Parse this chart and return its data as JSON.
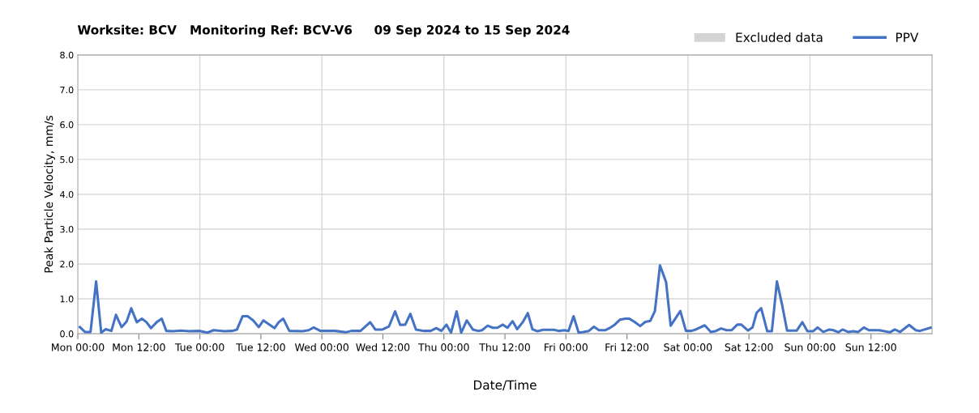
{
  "chart_data": {
    "type": "line",
    "title": "Worksite: BCV   Monitoring Ref: BCV-V6     09 Sep 2024 to 15 Sep 2024",
    "xlabel": "Date/Time",
    "ylabel": "Peak Particle Velocity, mm/s",
    "xlim": [
      "2024-09-09T00:00",
      "2024-09-16T00:00"
    ],
    "xticks": [
      {
        "value": "2024-09-09T00:00",
        "label": "Mon 00:00"
      },
      {
        "value": "2024-09-09T12:00",
        "label": "Mon 12:00"
      },
      {
        "value": "2024-09-10T00:00",
        "label": "Tue 00:00"
      },
      {
        "value": "2024-09-10T12:00",
        "label": "Tue 12:00"
      },
      {
        "value": "2024-09-11T00:00",
        "label": "Wed 00:00"
      },
      {
        "value": "2024-09-11T12:00",
        "label": "Wed 12:00"
      },
      {
        "value": "2024-09-12T00:00",
        "label": "Thu 00:00"
      },
      {
        "value": "2024-09-12T12:00",
        "label": "Thu 12:00"
      },
      {
        "value": "2024-09-13T00:00",
        "label": "Fri 00:00"
      },
      {
        "value": "2024-09-13T12:00",
        "label": "Fri 12:00"
      },
      {
        "value": "2024-09-14T00:00",
        "label": "Sat 00:00"
      },
      {
        "value": "2024-09-14T12:00",
        "label": "Sat 12:00"
      },
      {
        "value": "2024-09-15T00:00",
        "label": "Sun 00:00"
      },
      {
        "value": "2024-09-15T12:00",
        "label": "Sun 12:00"
      }
    ],
    "ylim": [
      0,
      8
    ],
    "yticks": [
      {
        "value": 0,
        "label": "0.0"
      },
      {
        "value": 1,
        "label": "1.0"
      },
      {
        "value": 2,
        "label": "2.0"
      },
      {
        "value": 3,
        "label": "3.0"
      },
      {
        "value": 4,
        "label": "4.0"
      },
      {
        "value": 5,
        "label": "5.0"
      },
      {
        "value": 6,
        "label": "6.0"
      },
      {
        "value": 7,
        "label": "7.0"
      },
      {
        "value": 8,
        "label": "8.0"
      }
    ],
    "grid": true,
    "legend": "top right",
    "marker": "none",
    "line_style": "solid",
    "series": [
      {
        "name": "Excluded data",
        "type": "area",
        "color": "#d4d4d4"
      },
      {
        "name": "PPV",
        "color": "#4472c4",
        "x": [
          "2024-09-09T00:24",
          "2024-09-09T01:24",
          "2024-09-09T02:30",
          "2024-09-09T03:36",
          "2024-09-09T04:36",
          "2024-09-09T05:30",
          "2024-09-09T06:36",
          "2024-09-09T07:30",
          "2024-09-09T08:36",
          "2024-09-09T09:36",
          "2024-09-09T10:30",
          "2024-09-09T11:36",
          "2024-09-09T12:36",
          "2024-09-09T13:30",
          "2024-09-09T14:24",
          "2024-09-09T15:30",
          "2024-09-09T16:30",
          "2024-09-09T17:24",
          "2024-09-09T18:42",
          "2024-09-09T20:18",
          "2024-09-09T21:54",
          "2024-09-10T00:00",
          "2024-09-10T01:30",
          "2024-09-10T02:42",
          "2024-09-10T04:48",
          "2024-09-10T06:24",
          "2024-09-10T07:18",
          "2024-09-10T08:24",
          "2024-09-10T09:24",
          "2024-09-10T10:30",
          "2024-09-10T11:36",
          "2024-09-10T12:30",
          "2024-09-10T13:36",
          "2024-09-10T14:42",
          "2024-09-10T15:30",
          "2024-09-10T16:24",
          "2024-09-10T17:36",
          "2024-09-10T20:12",
          "2024-09-10T21:24",
          "2024-09-10T22:24",
          "2024-09-10T23:42",
          "2024-09-11T02:36",
          "2024-09-11T04:42",
          "2024-09-11T05:48",
          "2024-09-11T07:36",
          "2024-09-11T09:30",
          "2024-09-11T10:30",
          "2024-09-11T11:54",
          "2024-09-11T13:12",
          "2024-09-11T14:24",
          "2024-09-11T15:24",
          "2024-09-11T16:24",
          "2024-09-11T17:24",
          "2024-09-11T18:30",
          "2024-09-11T20:06",
          "2024-09-11T21:24",
          "2024-09-11T22:30",
          "2024-09-11T23:30",
          "2024-09-12T00:30",
          "2024-09-12T01:24",
          "2024-09-12T02:30",
          "2024-09-12T03:24",
          "2024-09-12T04:30",
          "2024-09-12T05:42",
          "2024-09-12T06:42",
          "2024-09-12T07:30",
          "2024-09-12T08:36",
          "2024-09-12T09:36",
          "2024-09-12T10:30",
          "2024-09-12T11:36",
          "2024-09-12T12:30",
          "2024-09-12T13:30",
          "2024-09-12T14:24",
          "2024-09-12T15:30",
          "2024-09-12T16:30",
          "2024-09-12T17:24",
          "2024-09-12T18:24",
          "2024-09-12T19:30",
          "2024-09-12T21:36",
          "2024-09-12T22:42",
          "2024-09-12T23:42",
          "2024-09-13T00:30",
          "2024-09-13T01:30",
          "2024-09-13T02:30",
          "2024-09-13T03:24",
          "2024-09-13T04:30",
          "2024-09-13T05:30",
          "2024-09-13T06:30",
          "2024-09-13T07:42",
          "2024-09-13T08:48",
          "2024-09-13T09:36",
          "2024-09-13T10:36",
          "2024-09-13T11:42",
          "2024-09-13T12:30",
          "2024-09-13T13:30",
          "2024-09-13T14:36",
          "2024-09-13T15:36",
          "2024-09-13T16:36",
          "2024-09-13T17:30",
          "2024-09-13T18:30",
          "2024-09-13T19:42",
          "2024-09-13T20:36",
          "2024-09-13T22:30",
          "2024-09-13T23:36",
          "2024-09-14T00:42",
          "2024-09-14T01:42",
          "2024-09-14T03:18",
          "2024-09-14T04:30",
          "2024-09-14T05:30",
          "2024-09-14T06:30",
          "2024-09-14T07:36",
          "2024-09-14T08:36",
          "2024-09-14T09:42",
          "2024-09-14T10:30",
          "2024-09-14T11:48",
          "2024-09-14T12:42",
          "2024-09-14T13:30",
          "2024-09-14T14:24",
          "2024-09-14T15:36",
          "2024-09-14T16:30",
          "2024-09-14T17:30",
          "2024-09-14T18:30",
          "2024-09-14T19:30",
          "2024-09-14T21:24",
          "2024-09-14T22:30",
          "2024-09-14T23:30",
          "2024-09-15T00:36",
          "2024-09-15T01:30",
          "2024-09-15T02:36",
          "2024-09-15T03:48",
          "2024-09-15T04:36",
          "2024-09-15T05:36",
          "2024-09-15T06:24",
          "2024-09-15T07:30",
          "2024-09-15T08:30",
          "2024-09-15T09:30",
          "2024-09-15T10:36",
          "2024-09-15T11:36",
          "2024-09-15T13:36",
          "2024-09-15T15:42",
          "2024-09-15T16:42",
          "2024-09-15T17:42",
          "2024-09-15T19:30",
          "2024-09-15T20:48",
          "2024-09-15T21:36",
          "2024-09-15T23:42"
        ],
        "values": [
          0.19,
          0.05,
          0.05,
          1.5,
          0.03,
          0.13,
          0.08,
          0.54,
          0.19,
          0.35,
          0.73,
          0.33,
          0.43,
          0.33,
          0.16,
          0.33,
          0.43,
          0.08,
          0.07,
          0.09,
          0.07,
          0.08,
          0.03,
          0.1,
          0.07,
          0.08,
          0.12,
          0.5,
          0.5,
          0.38,
          0.19,
          0.38,
          0.27,
          0.16,
          0.33,
          0.43,
          0.08,
          0.07,
          0.1,
          0.18,
          0.08,
          0.08,
          0.04,
          0.08,
          0.08,
          0.33,
          0.12,
          0.12,
          0.21,
          0.64,
          0.25,
          0.26,
          0.57,
          0.12,
          0.08,
          0.08,
          0.16,
          0.08,
          0.26,
          0.03,
          0.64,
          0.03,
          0.38,
          0.12,
          0.08,
          0.1,
          0.23,
          0.17,
          0.17,
          0.26,
          0.17,
          0.36,
          0.13,
          0.33,
          0.59,
          0.13,
          0.07,
          0.11,
          0.11,
          0.08,
          0.1,
          0.08,
          0.5,
          0.03,
          0.05,
          0.08,
          0.2,
          0.1,
          0.1,
          0.18,
          0.26,
          0.4,
          0.43,
          0.43,
          0.34,
          0.22,
          0.34,
          0.37,
          0.65,
          1.96,
          1.48,
          0.23,
          0.65,
          0.08,
          0.08,
          0.13,
          0.24,
          0.05,
          0.08,
          0.15,
          0.1,
          0.1,
          0.26,
          0.26,
          0.09,
          0.18,
          0.6,
          0.73,
          0.07,
          0.07,
          1.5,
          0.84,
          0.09,
          0.09,
          0.33,
          0.07,
          0.07,
          0.18,
          0.05,
          0.12,
          0.1,
          0.04,
          0.12,
          0.05,
          0.07,
          0.05,
          0.18,
          0.1,
          0.1,
          0.04,
          0.12,
          0.05,
          0.25,
          0.1,
          0.08,
          0.17
        ]
      }
    ]
  }
}
